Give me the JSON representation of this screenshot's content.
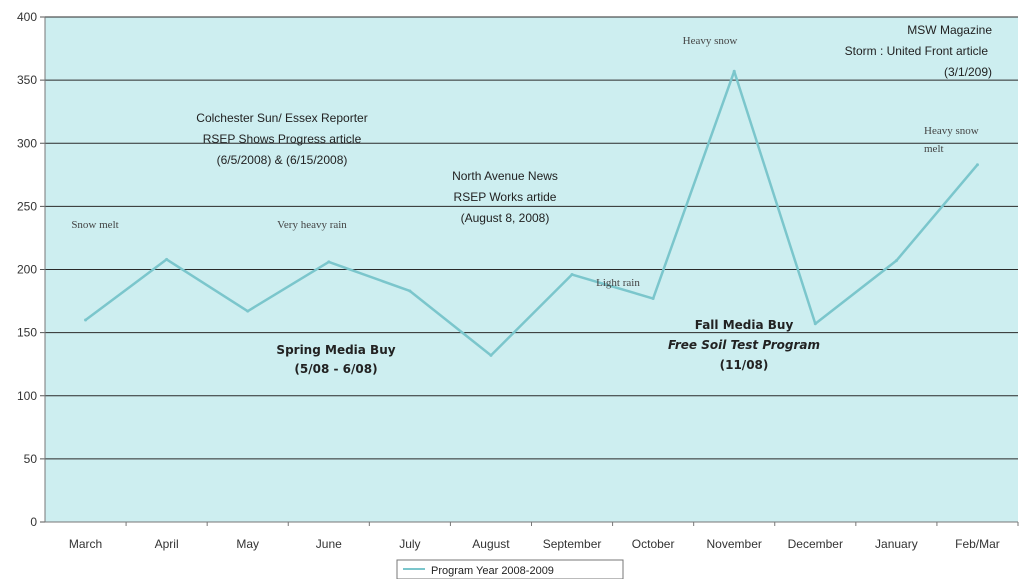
{
  "chart_data": {
    "type": "line",
    "title": "",
    "xlabel": "",
    "ylabel": "",
    "categories": [
      "March",
      "April",
      "May",
      "June",
      "July",
      "August",
      "September",
      "October",
      "November",
      "December",
      "January",
      "Feb/Mar"
    ],
    "series": [
      {
        "name": "Program Year 2008-2009",
        "values": [
          160,
          208,
          167,
          206,
          183,
          132,
          196,
          177,
          357,
          157,
          207,
          283
        ]
      }
    ],
    "ylim": [
      0,
      400
    ],
    "yticks": [
      0,
      50,
      100,
      150,
      200,
      250,
      300,
      350,
      400
    ],
    "grid": true,
    "legend_position": "bottom",
    "colors": {
      "line": "#7bc6cc",
      "plot_bg": "#cdeef0",
      "grid": "#2a2a2a"
    },
    "annotations": [
      {
        "id": "snow-melt",
        "lines": [
          "Snow melt"
        ],
        "style": "serif"
      },
      {
        "id": "very-heavy-rain",
        "lines": [
          "Very heavy rain"
        ],
        "style": "serif"
      },
      {
        "id": "colchester",
        "lines": [
          "Colchester Sun/ Essex Reporter",
          "RSEP Shows Progress article",
          "(6/5/2008) & (6/15/2008)"
        ],
        "style": "sans"
      },
      {
        "id": "north-avenue",
        "lines": [
          "North Avenue News",
          "RSEP Works artide",
          "(August 8, 2008)"
        ],
        "style": "sans"
      },
      {
        "id": "light-rain",
        "lines": [
          "Light rain"
        ],
        "style": "serif"
      },
      {
        "id": "heavy-snow",
        "lines": [
          "Heavy snow"
        ],
        "style": "serif"
      },
      {
        "id": "msw",
        "lines": [
          "MSW Magazine",
          "Storm : United Front article",
          "(3/1/209)"
        ],
        "style": "sans"
      },
      {
        "id": "heavy-snow-melt",
        "lines": [
          "Heavy snow",
          "melt"
        ],
        "style": "serif"
      },
      {
        "id": "spring-media",
        "lines": [
          "Spring Media Buy",
          "(5/08 - 6/08)"
        ],
        "style": "bold"
      },
      {
        "id": "fall-media",
        "lines": [
          "Fall Media Buy",
          "Free Soil Test Program",
          "(11/08)"
        ],
        "style": "bold-mixed"
      }
    ]
  }
}
